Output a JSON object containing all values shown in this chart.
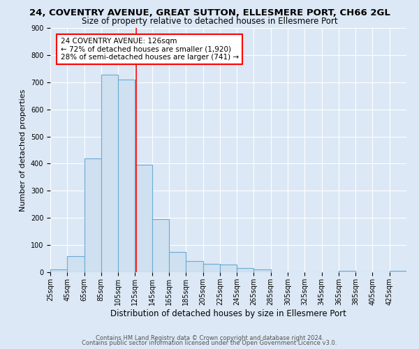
{
  "title": "24, COVENTRY AVENUE, GREAT SUTTON, ELLESMERE PORT, CH66 2GL",
  "subtitle": "Size of property relative to detached houses in Ellesmere Port",
  "xlabel": "Distribution of detached houses by size in Ellesmere Port",
  "ylabel": "Number of detached properties",
  "bin_edges": [
    25,
    45,
    65,
    85,
    105,
    125,
    145,
    165,
    185,
    205,
    225,
    245,
    265,
    285,
    305,
    325,
    345,
    365,
    385,
    405,
    425,
    445
  ],
  "bar_heights": [
    10,
    58,
    420,
    728,
    710,
    395,
    195,
    75,
    42,
    30,
    28,
    15,
    10,
    0,
    0,
    0,
    0,
    5,
    0,
    0,
    5
  ],
  "bar_color": "#cfe0f0",
  "bar_edge_color": "#6aaad4",
  "bar_linewidth": 0.8,
  "ref_line_x": 126,
  "ref_line_color": "red",
  "annotation_title": "24 COVENTRY AVENUE: 126sqm",
  "annotation_line1": "← 72% of detached houses are smaller (1,920)",
  "annotation_line2": "28% of semi-detached houses are larger (741) →",
  "annotation_box_color": "white",
  "annotation_box_edge": "red",
  "ylim": [
    0,
    900
  ],
  "yticks": [
    0,
    100,
    200,
    300,
    400,
    500,
    600,
    700,
    800,
    900
  ],
  "background_color": "#dce8f5",
  "plot_bg_color": "#dce8f5",
  "grid_color": "white",
  "footer1": "Contains HM Land Registry data © Crown copyright and database right 2024.",
  "footer2": "Contains public sector information licensed under the Open Government Licence v3.0.",
  "title_fontsize": 9.5,
  "subtitle_fontsize": 8.5,
  "xlabel_fontsize": 8.5,
  "ylabel_fontsize": 8,
  "tick_fontsize": 7,
  "annotation_fontsize": 7.5,
  "footer_fontsize": 6
}
